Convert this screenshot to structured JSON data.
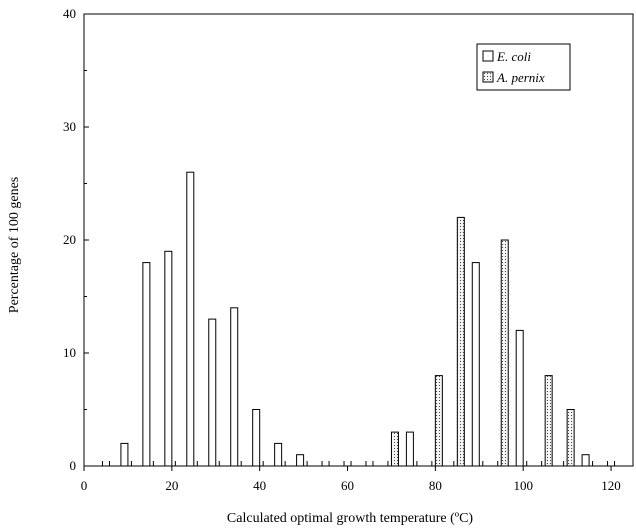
{
  "chart_data": {
    "type": "bar",
    "xlabel": "Calculated optimal growth temperature (ºC)",
    "ylabel": "Percentage of 100 genes",
    "xlim": [
      0,
      125
    ],
    "ylim": [
      0,
      40
    ],
    "xticks": [
      0,
      20,
      40,
      60,
      80,
      100,
      120
    ],
    "yticks": [
      0,
      10,
      20,
      30,
      40
    ],
    "grid": false,
    "legend_position": "top-right",
    "series": [
      {
        "name": "E. coli",
        "style": "white",
        "x": [
          5,
          10,
          15,
          20,
          25,
          30,
          35,
          40,
          45,
          50,
          55,
          60,
          65,
          70,
          75,
          80,
          85,
          90,
          95,
          100,
          105,
          110,
          115,
          120
        ],
        "values": [
          0,
          2,
          18,
          19,
          26,
          13,
          14,
          5,
          2,
          1,
          0,
          0,
          0,
          0,
          3,
          0,
          0,
          18,
          0,
          12,
          0,
          0,
          1,
          0
        ]
      },
      {
        "name": "A. pernix",
        "style": "dotted",
        "x": [
          5,
          10,
          15,
          20,
          25,
          30,
          35,
          40,
          45,
          50,
          55,
          60,
          65,
          70,
          75,
          80,
          85,
          90,
          95,
          100,
          105,
          110,
          115,
          120
        ],
        "values": [
          0,
          0,
          0,
          0,
          0,
          0,
          0,
          0,
          0,
          0,
          0,
          0,
          0,
          3,
          0,
          8,
          22,
          0,
          20,
          0,
          8,
          5,
          0,
          0
        ]
      }
    ],
    "colors": {
      "bar_fill": "#ffffff",
      "dotted_bg": "#f4f4f4",
      "dotted_dot": "#444444",
      "stroke": "#000000"
    }
  }
}
